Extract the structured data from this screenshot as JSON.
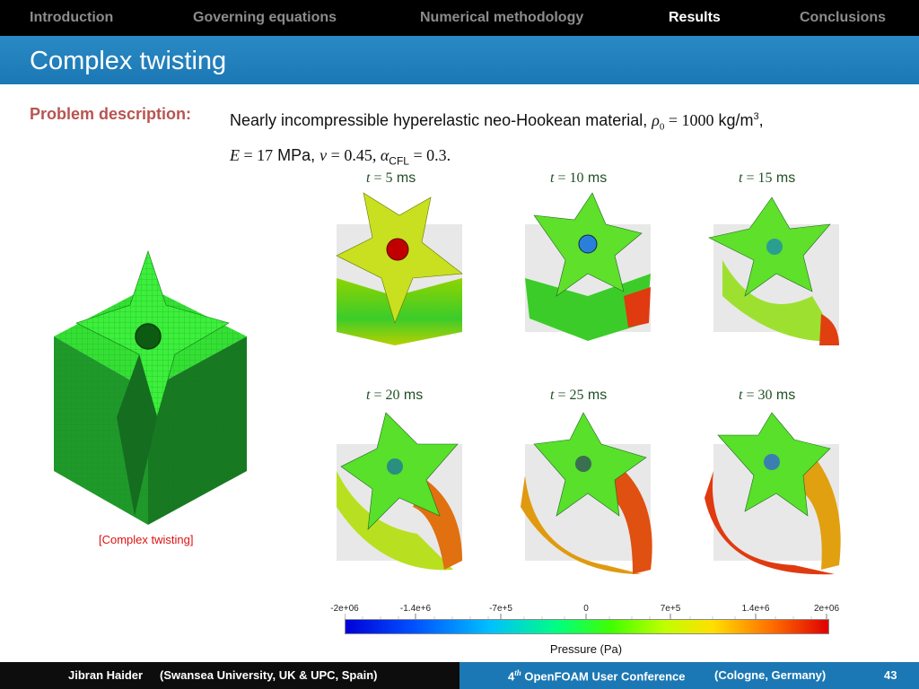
{
  "nav": {
    "items": [
      {
        "label": "Introduction"
      },
      {
        "label": "Governing equations"
      },
      {
        "label": "Numerical methodology"
      },
      {
        "label": "Results",
        "active": true
      },
      {
        "label": "Conclusions"
      }
    ]
  },
  "slide": {
    "title": "Complex twisting",
    "problem_label": "Problem description:",
    "line1_prefix": "Nearly incompressible hyperelastic neo-Hookean material, ",
    "rho_symbol": "ρ",
    "rho_sub": "0",
    "rho_eq": " = 1000",
    "rho_unit": " kg/m",
    "rho_unit_sup": "3",
    "line1_end": ",",
    "E_sym": "E",
    "E_val": " = 17",
    "E_unit": " MPa, ",
    "nu_sym": "ν",
    "nu_val": " = 0.45, ",
    "alpha_sym": "α",
    "alpha_sub": "CFL",
    "alpha_val": " = 0.3."
  },
  "snapshots": [
    {
      "t": "t",
      "eq": " = 5",
      "unit": " ms"
    },
    {
      "t": "t",
      "eq": " = 10",
      "unit": " ms"
    },
    {
      "t": "t",
      "eq": " = 15",
      "unit": " ms"
    },
    {
      "t": "t",
      "eq": " = 20",
      "unit": " ms"
    },
    {
      "t": "t",
      "eq": " = 25",
      "unit": " ms"
    },
    {
      "t": "t",
      "eq": " = 30",
      "unit": " ms"
    }
  ],
  "caption": "[Complex twisting]",
  "colorbar": {
    "ticks": [
      "-2e+06",
      "-1.4e+6",
      "-7e+5",
      "0",
      "7e+5",
      "1.4e+6",
      "2e+06"
    ],
    "label": "Pressure (Pa)"
  },
  "footer": {
    "author": "Jibran Haider",
    "affiliation": "(Swansea University, UK & UPC, Spain)",
    "conf_num": "4",
    "conf_sup": "th",
    "conference": "OpenFOAM User Conference",
    "location": "(Cologne, Germany)",
    "page": "43"
  },
  "colors": {
    "accent": "#1b78b4",
    "label": "#b85450",
    "mesh_green": "#2fe02f"
  }
}
